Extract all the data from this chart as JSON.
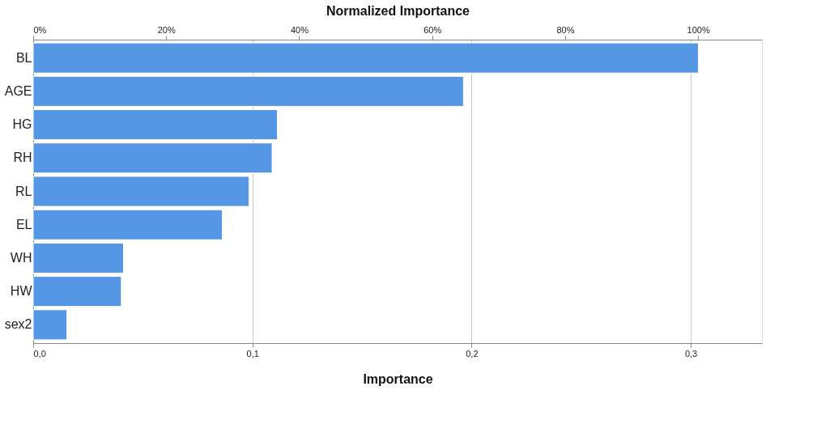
{
  "chart_data": {
    "type": "bar",
    "orientation": "horizontal",
    "categories": [
      "BL",
      "AGE",
      "HG",
      "RH",
      "RL",
      "EL",
      "WH",
      "HW",
      "sex2"
    ],
    "values": [
      0.3035,
      0.1963,
      0.1114,
      0.109,
      0.0985,
      0.0863,
      0.0412,
      0.0402,
      0.0154
    ],
    "color": "#5596e5",
    "xlabel": "Importance",
    "x2label": "Normalized Importance",
    "xlim": [
      0,
      0.3325
    ],
    "xticks": [
      {
        "value": 0,
        "label": "0,0"
      },
      {
        "value": 0.1,
        "label": "0,1"
      },
      {
        "value": 0.2,
        "label": "0,2"
      },
      {
        "value": 0.3,
        "label": "0,3"
      }
    ],
    "x2lim": [
      0,
      109.6
    ],
    "x2ticks": [
      {
        "value": 0,
        "label": "0%"
      },
      {
        "value": 20,
        "label": "20%"
      },
      {
        "value": 40,
        "label": "40%"
      },
      {
        "value": 60,
        "label": "60%"
      },
      {
        "value": 80,
        "label": "80%"
      },
      {
        "value": 100,
        "label": "100%"
      }
    ],
    "grid": "x"
  }
}
